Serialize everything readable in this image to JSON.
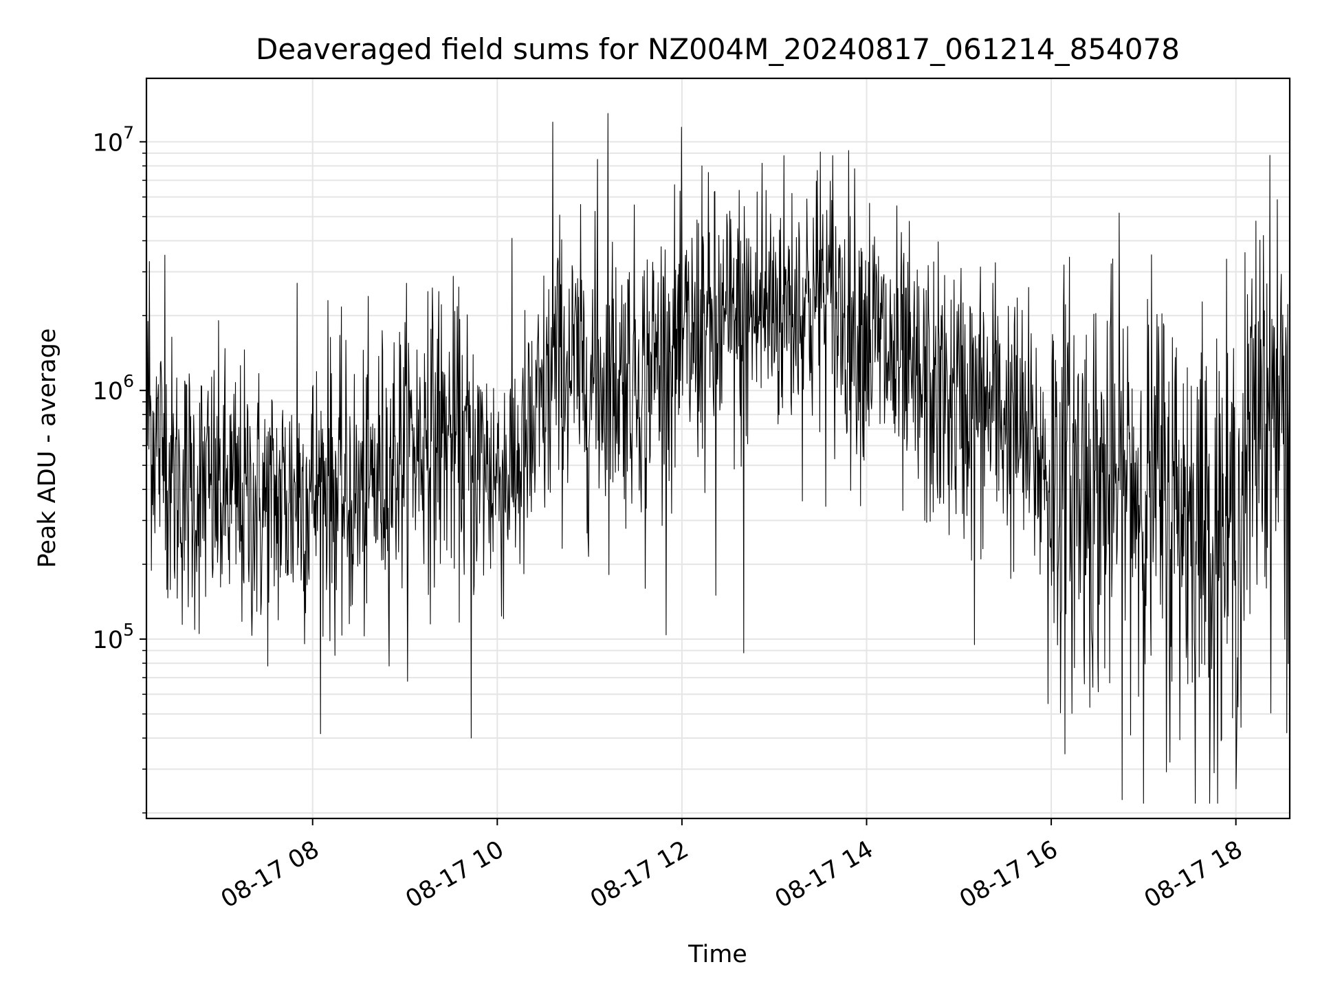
{
  "chart_data": {
    "type": "line",
    "title": "Deaveraged field sums for NZ004M_20240817_061214_854078",
    "xlabel": "Time",
    "ylabel": "Peak ADU - average",
    "y_scale": "log",
    "ylim": [
      19000,
      18000000
    ],
    "xlim": [
      "2024-08-17 06:12",
      "2024-08-17 18:35"
    ],
    "grid": true,
    "line_color": "#000000",
    "grid_color": "#e5e5e5",
    "x_ticks": [
      {
        "value": "2024-08-17 08:00",
        "label": "08-17 08"
      },
      {
        "value": "2024-08-17 10:00",
        "label": "08-17 10"
      },
      {
        "value": "2024-08-17 12:00",
        "label": "08-17 12"
      },
      {
        "value": "2024-08-17 14:00",
        "label": "08-17 14"
      },
      {
        "value": "2024-08-17 16:00",
        "label": "08-17 16"
      },
      {
        "value": "2024-08-17 18:00",
        "label": "08-17 18"
      }
    ],
    "y_ticks": [
      {
        "value": 100000,
        "base": "10",
        "exp": "5"
      },
      {
        "value": 1000000,
        "base": "10",
        "exp": "6"
      },
      {
        "value": 10000000,
        "base": "10",
        "exp": "7"
      }
    ],
    "series": [
      {
        "trend": {
          "x": [
            "2024-08-17 06:12",
            "2024-08-17 06:30",
            "2024-08-17 07:00",
            "2024-08-17 07:30",
            "2024-08-17 08:00",
            "2024-08-17 08:30",
            "2024-08-17 09:00",
            "2024-08-17 09:30",
            "2024-08-17 10:00",
            "2024-08-17 10:20",
            "2024-08-17 10:40",
            "2024-08-17 11:00",
            "2024-08-17 11:30",
            "2024-08-17 12:00",
            "2024-08-17 12:30",
            "2024-08-17 13:00",
            "2024-08-17 13:30",
            "2024-08-17 14:00",
            "2024-08-17 14:30",
            "2024-08-17 15:00",
            "2024-08-17 15:30",
            "2024-08-17 16:00",
            "2024-08-17 16:30",
            "2024-08-17 17:00",
            "2024-08-17 17:30",
            "2024-08-17 18:00",
            "2024-08-17 18:15",
            "2024-08-17 18:35"
          ],
          "y": [
            800000,
            420000,
            380000,
            340000,
            400000,
            360000,
            600000,
            650000,
            450000,
            550000,
            1300000,
            1100000,
            1200000,
            1500000,
            1800000,
            2200000,
            2300000,
            1800000,
            1000000,
            900000,
            800000,
            450000,
            400000,
            420000,
            320000,
            260000,
            900000,
            800000
          ]
        },
        "spikes": [
          {
            "x": "2024-08-17 06:12",
            "y": 3700000
          },
          {
            "x": "2024-08-17 06:14",
            "y": 3300000
          },
          {
            "x": "2024-08-17 06:24",
            "y": 3500000
          },
          {
            "x": "2024-08-17 07:50",
            "y": 2700000
          },
          {
            "x": "2024-08-17 08:10",
            "y": 2300000
          },
          {
            "x": "2024-08-17 09:15",
            "y": 2500000
          },
          {
            "x": "2024-08-17 09:22",
            "y": 2500000
          },
          {
            "x": "2024-08-17 09:43",
            "y": 40000
          },
          {
            "x": "2024-08-17 10:36",
            "y": 12000000
          },
          {
            "x": "2024-08-17 11:05",
            "y": 8500000
          },
          {
            "x": "2024-08-17 11:12",
            "y": 13000000
          },
          {
            "x": "2024-08-17 11:36",
            "y": 160000
          },
          {
            "x": "2024-08-17 12:13",
            "y": 8000000
          },
          {
            "x": "2024-08-17 12:22",
            "y": 150000
          },
          {
            "x": "2024-08-17 12:40",
            "y": 88000
          },
          {
            "x": "2024-08-17 12:52",
            "y": 8200000
          },
          {
            "x": "2024-08-17 13:30",
            "y": 9100000
          },
          {
            "x": "2024-08-17 13:38",
            "y": 8800000
          },
          {
            "x": "2024-08-17 15:10",
            "y": 95000
          },
          {
            "x": "2024-08-17 15:22",
            "y": 2700000
          },
          {
            "x": "2024-08-17 15:58",
            "y": 55000
          },
          {
            "x": "2024-08-17 17:17",
            "y": 32000
          },
          {
            "x": "2024-08-17 17:46",
            "y": 29000
          },
          {
            "x": "2024-08-17 18:00",
            "y": 25000
          },
          {
            "x": "2024-08-17 18:18",
            "y": 4200000
          },
          {
            "x": "2024-08-17 18:33",
            "y": 42000
          }
        ]
      }
    ]
  }
}
